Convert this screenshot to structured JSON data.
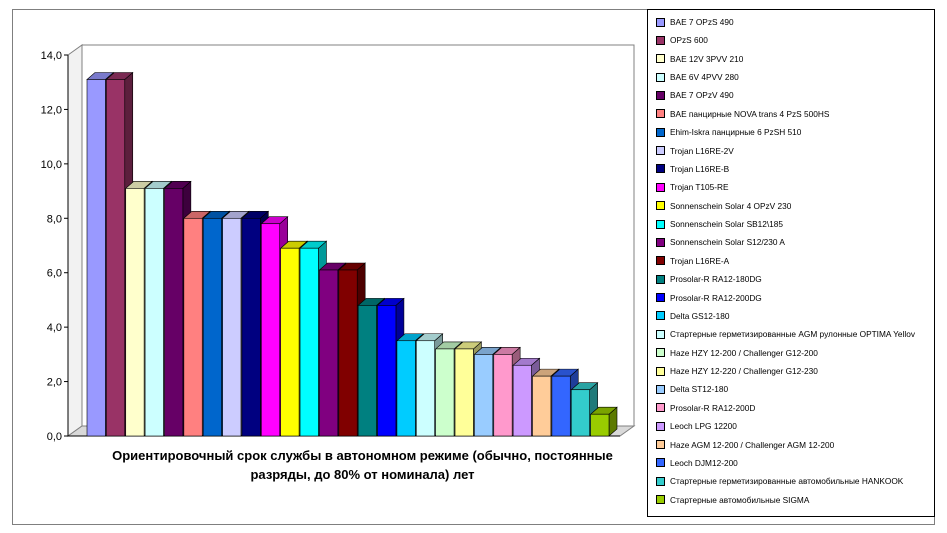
{
  "chart_data": {
    "type": "bar",
    "xlabel": "Ориентировочный  срок службы в автономном режиме (обычно, постоянные разряды, до 80% от номинала) лет",
    "ylim": [
      0,
      14
    ],
    "yticks": [
      "0,0",
      "2,0",
      "4,0",
      "6,0",
      "8,0",
      "10,0",
      "12,0",
      "14,0"
    ],
    "legend_position": "right",
    "series": [
      {
        "name": "BAE 7 OPzS 490",
        "value": 13.1,
        "color": "#9999ff"
      },
      {
        "name": "OPzS 600",
        "value": 13.1,
        "color": "#993366"
      },
      {
        "name": "BAE 12V 3PVV 210",
        "value": 9.1,
        "color": "#ffffcc"
      },
      {
        "name": "BAE 6V 4PVV 280",
        "value": 9.1,
        "color": "#ccffff"
      },
      {
        "name": "BAE 7 OPzV 490",
        "value": 9.1,
        "color": "#660066"
      },
      {
        "name": "BAE панцирные NOVA trans 4 PzS 500HS",
        "value": 8.0,
        "color": "#ff8080"
      },
      {
        "name": "Ehim-Iskra панцирные 6 PzSH 510",
        "value": 8.0,
        "color": "#0066cc"
      },
      {
        "name": "Trojan L16RE-2V",
        "value": 8.0,
        "color": "#ccccff"
      },
      {
        "name": "Trojan L16RE-B",
        "value": 8.0,
        "color": "#000080"
      },
      {
        "name": "Trojan T105-RE",
        "value": 7.8,
        "color": "#ff00ff"
      },
      {
        "name": "Sonnenschein Solar 4 OPzV 230",
        "value": 6.9,
        "color": "#ffff00"
      },
      {
        "name": "Sonnenschein Solar SB12\\185",
        "value": 6.9,
        "color": "#00ffff"
      },
      {
        "name": "Sonnenschein Solar S12/230 A",
        "value": 6.1,
        "color": "#800080"
      },
      {
        "name": "Trojan L16RE-A",
        "value": 6.1,
        "color": "#800000"
      },
      {
        "name": "Prosolar-R RA12-180DG",
        "value": 4.8,
        "color": "#008080"
      },
      {
        "name": "Prosolar-R RA12-200DG",
        "value": 4.8,
        "color": "#0000ff"
      },
      {
        "name": "Delta GS12-180",
        "value": 3.5,
        "color": "#00ccff"
      },
      {
        "name": "Стартерные герметизированные AGM рулонные OPTIMA Yellov",
        "value": 3.5,
        "color": "#ccffff"
      },
      {
        "name": "Haze HZY 12-200 / Challenger G12-200",
        "value": 3.2,
        "color": "#ccffcc"
      },
      {
        "name": "Haze HZY 12-220 /  Challenger G12-230",
        "value": 3.2,
        "color": "#ffff99"
      },
      {
        "name": "Delta ST12-180",
        "value": 3.0,
        "color": "#99ccff"
      },
      {
        "name": "Prosolar-R RA12-200D",
        "value": 3.0,
        "color": "#ff99cc"
      },
      {
        "name": "Leoch LPG 12200",
        "value": 2.6,
        "color": "#cc99ff"
      },
      {
        "name": "Haze AGM 12-200 / Challenger AGM 12-200",
        "value": 2.2,
        "color": "#ffcc99"
      },
      {
        "name": "Leoch DJM12-200",
        "value": 2.2,
        "color": "#3366ff"
      },
      {
        "name": "Стартерные герметизированные автомобильные HANKOOK",
        "value": 1.7,
        "color": "#33cccc"
      },
      {
        "name": "Стартерные автомобильные SIGMA",
        "value": 0.8,
        "color": "#99cc00"
      }
    ]
  }
}
